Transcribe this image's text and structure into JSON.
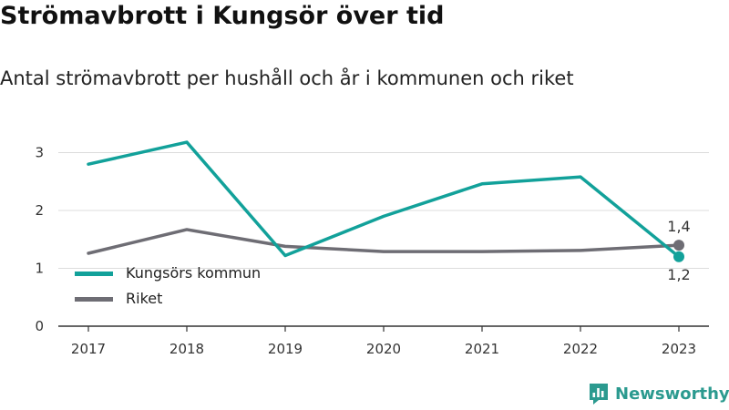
{
  "header": {
    "title": "Strömavbrott i Kungsör över tid",
    "subtitle": "Antal strömavbrott per hushåll och år i kommunen och riket"
  },
  "brand": {
    "name": "Newsworthy",
    "icon": "newsworthy-logo-icon",
    "color": "#2b9a8f"
  },
  "chart_data": {
    "type": "line",
    "title": "Strömavbrott i Kungsör över tid",
    "subtitle": "Antal strömavbrott per hushåll och år i kommunen och riket",
    "xlabel": "",
    "ylabel": "",
    "categories": [
      "2017",
      "2018",
      "2019",
      "2020",
      "2021",
      "2022",
      "2023"
    ],
    "ylim": [
      0,
      3.3
    ],
    "yticks": [
      "0",
      "1",
      "2",
      "3"
    ],
    "grid": true,
    "legend_position": "bottom-left",
    "series": [
      {
        "name": "Kungsörs kommun",
        "color": "#12a19a",
        "values": [
          2.8,
          3.18,
          1.22,
          1.9,
          2.46,
          2.58,
          1.2
        ],
        "end_label": "1,2"
      },
      {
        "name": "Riket",
        "color": "#6e6d74",
        "values": [
          1.26,
          1.67,
          1.38,
          1.29,
          1.29,
          1.31,
          1.4
        ],
        "end_label": "1,4"
      }
    ]
  }
}
